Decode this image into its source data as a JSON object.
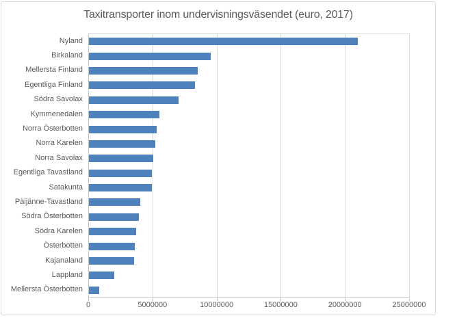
{
  "title": "Taxitransporter inom undervisningsväsendet (euro, 2017)",
  "colors": {
    "bar": "#4f81bd",
    "gridline": "#d9d9d9",
    "axis_line": "#c6c6c6",
    "text": "#595959",
    "frame_border": "#d9d9d9",
    "background": "#ffffff"
  },
  "chart_data": {
    "type": "bar",
    "orientation": "horizontal",
    "title": "Taxitransporter inom undervisningsväsendet (euro, 2017)",
    "xlabel": "",
    "ylabel": "",
    "xlim": [
      0,
      25000000
    ],
    "x_ticks": [
      0,
      5000000,
      10000000,
      15000000,
      20000000,
      25000000
    ],
    "x_tick_labels": [
      "0",
      "5000000",
      "10000000",
      "15000000",
      "20000000",
      "25000000"
    ],
    "grid": "vertical",
    "legend": "none",
    "categories": [
      "Nyland",
      "Birkaland",
      "Mellersta Finland",
      "Egentliga Finland",
      "Södra Savolax",
      "Kymmenedalen",
      "Norra Österbotten",
      "Norra Karelen",
      "Norra Savolax",
      "Egentliga Tavastland",
      "Satakunta",
      "Päijänne-Tavastland",
      "Södra Österbotten",
      "Södra Karelen",
      "Österbotten",
      "Kajanaland",
      "Lappland",
      "Mellersta Österbotten"
    ],
    "values": [
      21000000,
      9500000,
      8500000,
      8300000,
      7000000,
      5500000,
      5300000,
      5200000,
      5000000,
      4900000,
      4900000,
      4000000,
      3900000,
      3700000,
      3600000,
      3500000,
      2000000,
      800000
    ]
  }
}
